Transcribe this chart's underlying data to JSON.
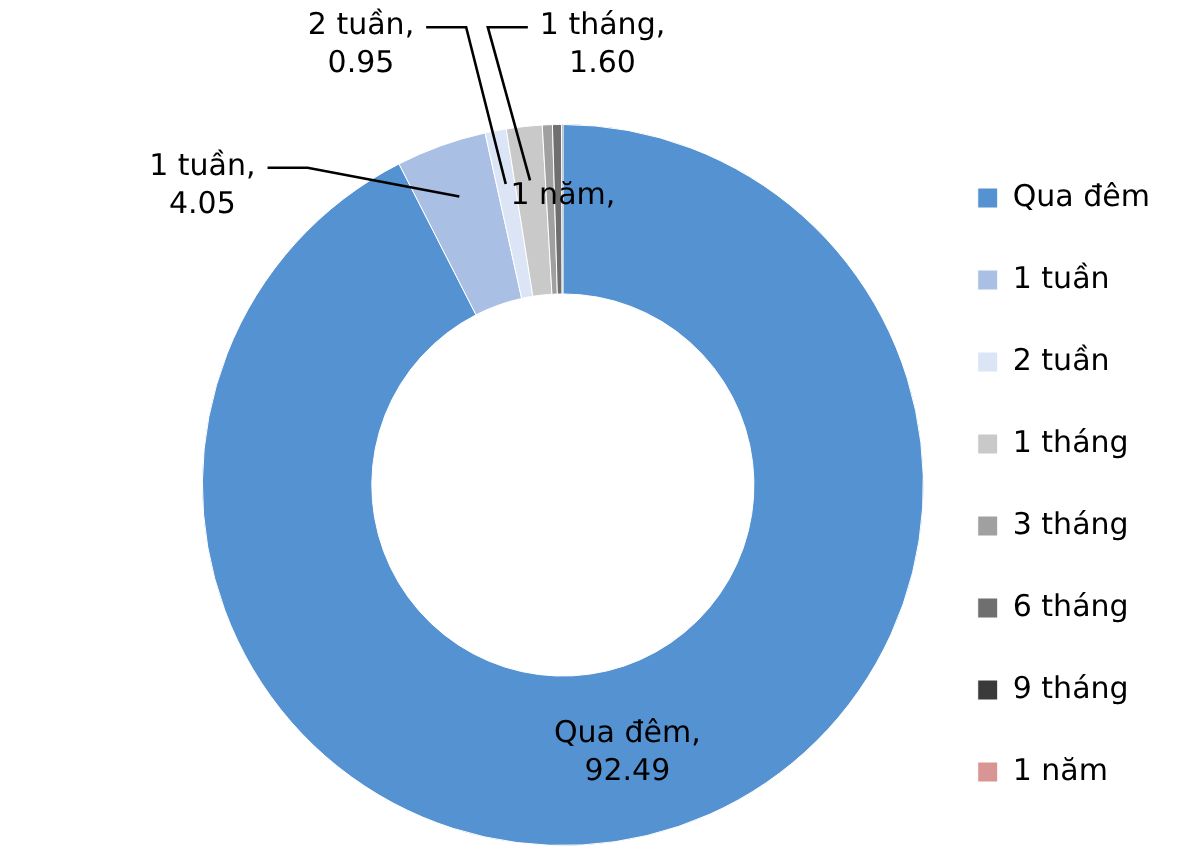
{
  "chart_data": {
    "type": "donut",
    "categories": [
      "Qua đêm",
      "1 tuần",
      "2 tuần",
      "1 tháng",
      "3 tháng",
      "6 tháng",
      "9 tháng",
      "1 năm"
    ],
    "values": [
      92.49,
      4.05,
      0.95,
      1.6,
      0.45,
      0.4,
      0.06,
      null
    ],
    "colors": [
      "#5592d2",
      "#a9bfe4",
      "#dbe5f5",
      "#c9c9c9",
      "#a0a0a0",
      "#6f6f6f",
      "#3a3a3a",
      "#d99594"
    ],
    "value_labels": [
      "Qua đêm, 92.49",
      "1 tuần, 4.05",
      "2 tuần, 0.95",
      "1 tháng, 1.60",
      null,
      null,
      null,
      null
    ],
    "annotations": [
      {
        "text": "1 năm,",
        "x": "1 năm"
      }
    ],
    "legend": "right"
  }
}
